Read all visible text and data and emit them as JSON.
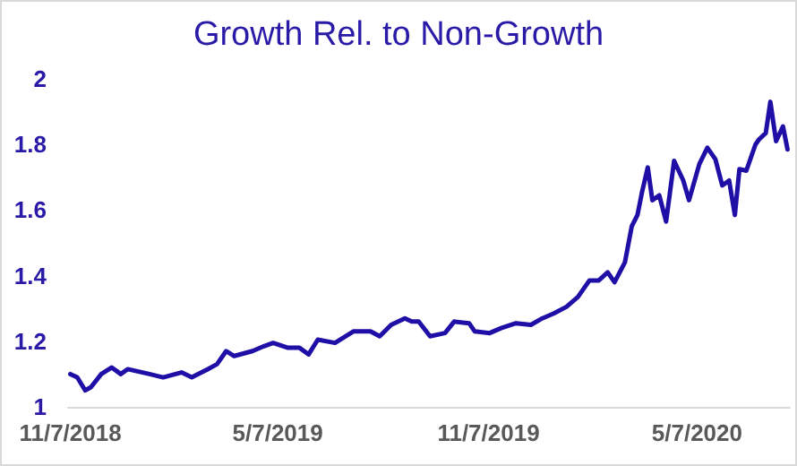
{
  "chart_data": {
    "type": "line",
    "title": "Growth Rel. to Non-Growth",
    "x": [
      "2018-11-07",
      "2018-11-13",
      "2018-11-20",
      "2018-11-25",
      "2018-12-04",
      "2018-12-13",
      "2018-12-21",
      "2018-12-27",
      "2019-01-15",
      "2019-01-27",
      "2019-02-12",
      "2019-02-21",
      "2019-03-07",
      "2019-03-15",
      "2019-03-23",
      "2019-03-30",
      "2019-04-15",
      "2019-04-25",
      "2019-05-03",
      "2019-05-16",
      "2019-05-26",
      "2019-06-03",
      "2019-06-11",
      "2019-06-26",
      "2019-07-12",
      "2019-07-27",
      "2019-08-04",
      "2019-08-14",
      "2019-08-26",
      "2019-09-01",
      "2019-09-07",
      "2019-09-17",
      "2019-09-30",
      "2019-10-08",
      "2019-10-21",
      "2019-10-26",
      "2019-11-08",
      "2019-11-18",
      "2019-12-01",
      "2019-12-14",
      "2019-12-24",
      "2020-01-03",
      "2020-01-14",
      "2020-01-24",
      "2020-02-03",
      "2020-02-11",
      "2020-02-19",
      "2020-02-25",
      "2020-03-05",
      "2020-03-11",
      "2020-03-16",
      "2020-03-20",
      "2020-03-25",
      "2020-03-29",
      "2020-04-04",
      "2020-04-10",
      "2020-04-17",
      "2020-04-25",
      "2020-04-30",
      "2020-05-09",
      "2020-05-16",
      "2020-05-23",
      "2020-05-29",
      "2020-06-04",
      "2020-06-09",
      "2020-06-13",
      "2020-06-19",
      "2020-06-27",
      "2020-06-30",
      "2020-07-06",
      "2020-07-10",
      "2020-07-15",
      "2020-07-21",
      "2020-07-25"
    ],
    "series": [
      {
        "color": "#1f0fa6",
        "values": [
          1.1,
          1.09,
          1.05,
          1.06,
          1.1,
          1.12,
          1.1,
          1.115,
          1.1,
          1.09,
          1.105,
          1.09,
          1.115,
          1.13,
          1.17,
          1.155,
          1.17,
          1.185,
          1.195,
          1.18,
          1.18,
          1.16,
          1.205,
          1.195,
          1.23,
          1.23,
          1.215,
          1.25,
          1.27,
          1.26,
          1.26,
          1.215,
          1.225,
          1.26,
          1.255,
          1.23,
          1.225,
          1.24,
          1.255,
          1.25,
          1.27,
          1.285,
          1.305,
          1.335,
          1.385,
          1.385,
          1.41,
          1.38,
          1.44,
          1.55,
          1.585,
          1.655,
          1.73,
          1.63,
          1.645,
          1.565,
          1.75,
          1.69,
          1.63,
          1.74,
          1.79,
          1.755,
          1.675,
          1.69,
          1.585,
          1.725,
          1.72,
          1.8,
          1.815,
          1.835,
          1.93,
          1.81,
          1.855,
          1.785
        ]
      }
    ],
    "xlim": [
      "2018-11-05",
      "2020-07-27"
    ],
    "xticks": [
      {
        "value": "2018-11-07",
        "label": "11/7/2018"
      },
      {
        "value": "2019-05-07",
        "label": "5/7/2019"
      },
      {
        "value": "2019-11-07",
        "label": "11/7/2019"
      },
      {
        "value": "2020-05-07",
        "label": "5/7/2020"
      }
    ],
    "ylim": [
      1,
      2
    ],
    "yticks": [
      1,
      1.2,
      1.4,
      1.6,
      1.8,
      2
    ],
    "grid": false,
    "marker": "none",
    "line_style": "solid"
  }
}
